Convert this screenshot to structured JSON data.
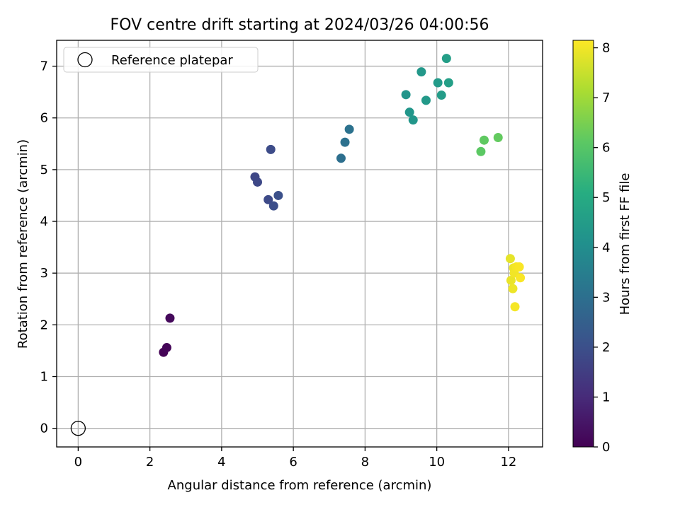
{
  "chart_data": {
    "type": "scatter",
    "title": "FOV centre drift starting at 2024/03/26 04:00:56",
    "xlabel": "Angular distance from reference (arcmin)",
    "ylabel": "Rotation from reference (arcmin)",
    "xlim": [
      -0.6,
      12.95
    ],
    "ylim": [
      -0.36,
      7.5
    ],
    "xticks": [
      0,
      2,
      4,
      6,
      8,
      10,
      12
    ],
    "yticks": [
      0,
      1,
      2,
      3,
      4,
      5,
      6,
      7
    ],
    "grid": true,
    "legend": {
      "placement": "top-left",
      "entries": [
        "Reference platepar"
      ]
    },
    "reference_point": {
      "x": 0,
      "y": 0,
      "label": "Reference platepar",
      "marker": "hollow-circle"
    },
    "colorbar": {
      "label": "Hours from first FF file",
      "colormap": "viridis",
      "range": [
        0,
        8.15
      ],
      "ticks": [
        0,
        1,
        2,
        3,
        4,
        5,
        6,
        7,
        8
      ]
    },
    "points": [
      {
        "x": 2.38,
        "y": 1.47,
        "hours": 0.05
      },
      {
        "x": 2.47,
        "y": 1.56,
        "hours": 0.1
      },
      {
        "x": 2.56,
        "y": 2.13,
        "hours": 0.2
      },
      {
        "x": 4.93,
        "y": 4.86,
        "hours": 1.75
      },
      {
        "x": 5.0,
        "y": 4.76,
        "hours": 1.8
      },
      {
        "x": 5.3,
        "y": 4.42,
        "hours": 1.85
      },
      {
        "x": 5.37,
        "y": 5.39,
        "hours": 1.9
      },
      {
        "x": 5.45,
        "y": 4.3,
        "hours": 1.95
      },
      {
        "x": 5.58,
        "y": 4.5,
        "hours": 2.0
      },
      {
        "x": 7.33,
        "y": 5.22,
        "hours": 3.0
      },
      {
        "x": 7.44,
        "y": 5.53,
        "hours": 3.05
      },
      {
        "x": 7.56,
        "y": 5.78,
        "hours": 3.1
      },
      {
        "x": 9.14,
        "y": 6.45,
        "hours": 4.25
      },
      {
        "x": 9.24,
        "y": 6.11,
        "hours": 4.3
      },
      {
        "x": 9.34,
        "y": 5.96,
        "hours": 4.3
      },
      {
        "x": 9.57,
        "y": 6.89,
        "hours": 4.35
      },
      {
        "x": 9.7,
        "y": 6.34,
        "hours": 4.4
      },
      {
        "x": 10.03,
        "y": 6.68,
        "hours": 4.45
      },
      {
        "x": 10.13,
        "y": 6.44,
        "hours": 4.5
      },
      {
        "x": 10.27,
        "y": 7.15,
        "hours": 4.55
      },
      {
        "x": 10.33,
        "y": 6.68,
        "hours": 4.6
      },
      {
        "x": 11.23,
        "y": 5.35,
        "hours": 6.1
      },
      {
        "x": 11.32,
        "y": 5.57,
        "hours": 6.15
      },
      {
        "x": 11.71,
        "y": 5.62,
        "hours": 6.2
      },
      {
        "x": 12.05,
        "y": 3.28,
        "hours": 7.85
      },
      {
        "x": 12.07,
        "y": 2.86,
        "hours": 7.9
      },
      {
        "x": 12.12,
        "y": 2.7,
        "hours": 7.95
      },
      {
        "x": 12.14,
        "y": 3.1,
        "hours": 7.95
      },
      {
        "x": 12.16,
        "y": 3.0,
        "hours": 8.0
      },
      {
        "x": 12.18,
        "y": 2.35,
        "hours": 8.05
      },
      {
        "x": 12.22,
        "y": 3.12,
        "hours": 8.05
      },
      {
        "x": 12.3,
        "y": 3.12,
        "hours": 8.1
      },
      {
        "x": 12.33,
        "y": 2.91,
        "hours": 8.1
      }
    ]
  }
}
